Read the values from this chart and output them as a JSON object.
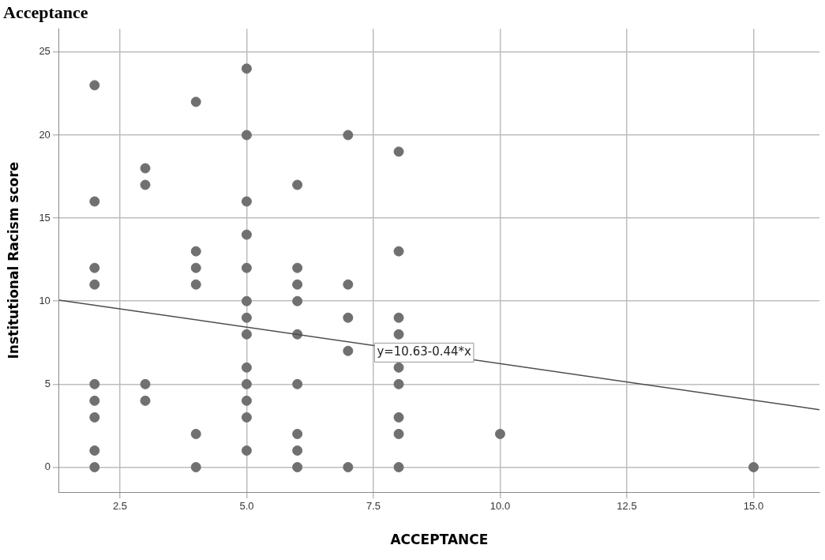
{
  "chart_data": {
    "type": "scatter",
    "title": "Acceptance",
    "xlabel": "ACCEPTANCE",
    "ylabel": "Institutional Racism score",
    "series": [
      {
        "color": "#707070",
        "marker": "circle",
        "x": [
          2,
          2,
          2,
          2,
          2,
          2,
          2,
          2,
          2,
          3,
          3,
          3,
          3,
          4,
          4,
          4,
          4,
          4,
          4,
          5,
          5,
          5,
          5,
          5,
          5,
          5,
          5,
          5,
          5,
          5,
          5,
          5,
          6,
          6,
          6,
          6,
          6,
          6,
          6,
          6,
          6,
          7,
          7,
          7,
          7,
          7,
          8,
          8,
          8,
          8,
          8,
          8,
          8,
          8,
          8,
          10,
          15
        ],
        "values": [
          23,
          16,
          12,
          11,
          5,
          4,
          3,
          1,
          0,
          18,
          17,
          5,
          4,
          22,
          13,
          12,
          11,
          2,
          0,
          24,
          20,
          16,
          14,
          12,
          10,
          9,
          8,
          6,
          5,
          4,
          3,
          1,
          17,
          12,
          11,
          10,
          8,
          5,
          2,
          1,
          0,
          20,
          11,
          9,
          7,
          0,
          19,
          13,
          9,
          8,
          6,
          5,
          3,
          2,
          0,
          2,
          0
        ]
      },
      {
        "type": "line",
        "color": "#4d4d4d",
        "x": [
          1.3,
          16.3
        ],
        "values": [
          10.06,
          3.46
        ]
      }
    ],
    "annotations": [
      {
        "text": "y=10.63-0.44*x",
        "x": 8.5,
        "y": 6.9
      }
    ],
    "xlim": [
      1.3,
      16.3
    ],
    "ylim": [
      -1.5,
      26.4
    ],
    "xticks": [
      2.5,
      {
        "value": 5,
        "label": "5.0"
      },
      7.5,
      {
        "value": 10,
        "label": "10.0"
      },
      12.5,
      {
        "value": 15,
        "label": "15.0"
      }
    ],
    "yticks": [
      0,
      5,
      10,
      15,
      20,
      25
    ],
    "grid": true,
    "legend": false,
    "line_style": "solid"
  }
}
